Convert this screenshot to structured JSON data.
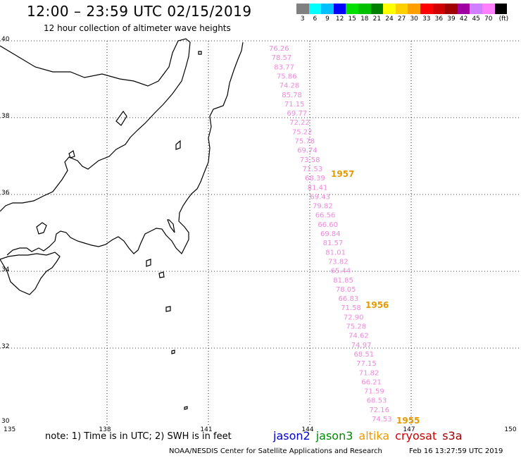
{
  "title": "12:00 – 23:59 UTC 02/15/2019",
  "subtitle": "12 hour collection of altimeter wave heights",
  "colorbar": {
    "labels": [
      "3",
      "6",
      "9",
      "12",
      "15",
      "18",
      "21",
      "24",
      "27",
      "30",
      "33",
      "36",
      "39",
      "42",
      "45",
      "70",
      "(ft)"
    ],
    "colors": [
      "#808080",
      "#00ffff",
      "#00c0ff",
      "#0000ff",
      "#00e000",
      "#00c000",
      "#008000",
      "#ffff00",
      "#ffd000",
      "#ffa000",
      "#ff0000",
      "#d00000",
      "#a00000",
      "#a000a0",
      "#d080ff",
      "#ff80ff",
      "#000000"
    ]
  },
  "axes": {
    "lon_labels": [
      "135",
      "138",
      "141",
      "144",
      "147",
      "150"
    ],
    "lat_labels": [
      "30",
      "32",
      "34",
      "36",
      "38",
      "40"
    ]
  },
  "track": {
    "color": "#ee88dd",
    "values": [
      "76.26",
      "78.57",
      "83.77",
      "75.86",
      "74.28",
      "85.78",
      "71.15",
      "69.77",
      "72.22",
      "75.22",
      "75.78",
      "69.74",
      "73.58",
      "71.53",
      "68.39",
      "81.41",
      "69.43",
      "79.82",
      "66.56",
      "66.60",
      "69.84",
      "81.57",
      "81.01",
      "73.82",
      "65.44",
      "81.85",
      "78.05",
      "66.83",
      "71.58",
      "72.90",
      "75.28",
      "74.62",
      "74.97",
      "68.51",
      "77.15",
      "71.82",
      "66.21",
      "71.59",
      "68.53",
      "72.16",
      "74.53"
    ]
  },
  "time_labels": [
    {
      "text": "1957"
    },
    {
      "text": "1956"
    },
    {
      "text": "1955"
    }
  ],
  "time_label_color": "#e69900",
  "note": "note: 1) Time is in UTC; 2) SWH is in feet",
  "legend": [
    {
      "label": "jason2",
      "color": "#0000cc"
    },
    {
      "label": "jason3",
      "color": "#008800"
    },
    {
      "label": "altika",
      "color": "#ee9900"
    },
    {
      "label": "cryosat",
      "color": "#cc0000"
    },
    {
      "label": "s3a",
      "color": "#990000"
    }
  ],
  "credit": "NOAA/NESDIS Center for Satellite Applications and Research",
  "credit_time": "Feb 16 13:27:59 UTC 2019"
}
